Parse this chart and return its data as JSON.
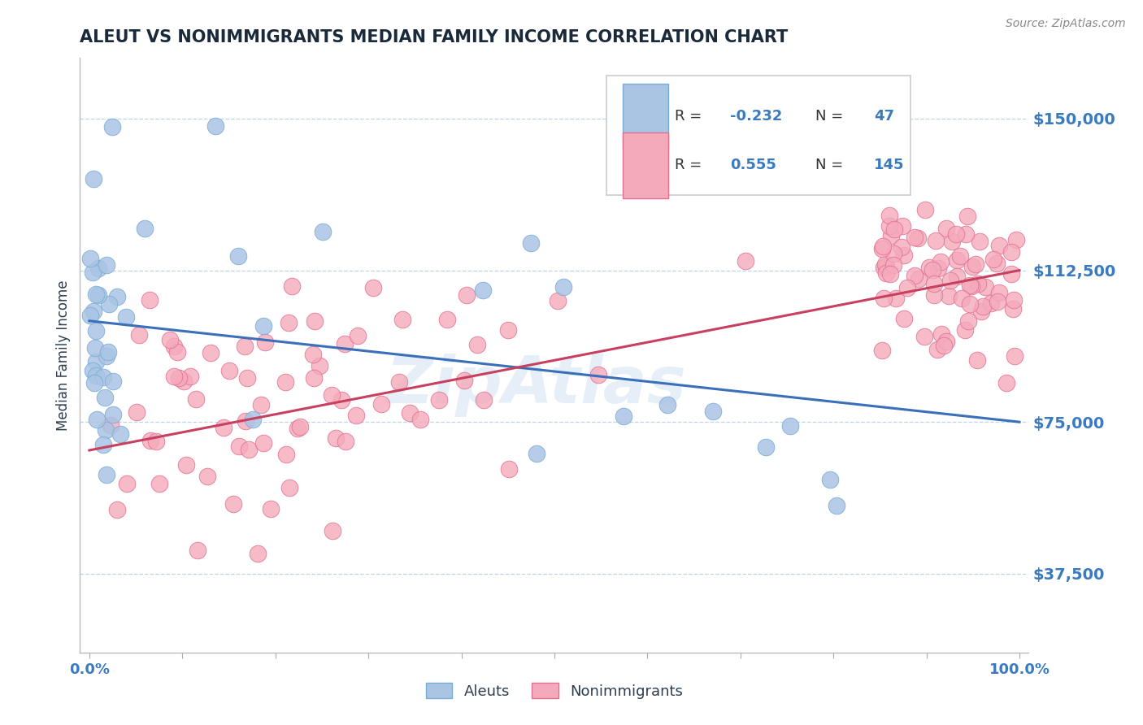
{
  "title": "ALEUT VS NONIMMIGRANTS MEDIAN FAMILY INCOME CORRELATION CHART",
  "source": "Source: ZipAtlas.com",
  "ylabel": "Median Family Income",
  "xlim": [
    -0.01,
    1.01
  ],
  "ylim": [
    18000,
    165000
  ],
  "yticks": [
    37500,
    75000,
    112500,
    150000
  ],
  "ytick_labels": [
    "$37,500",
    "$75,000",
    "$112,500",
    "$150,000"
  ],
  "aleut_color": "#aac4e4",
  "aleut_edge": "#7aadd4",
  "nonimm_color": "#f5aabb",
  "nonimm_edge": "#e07090",
  "trend_blue": "#3a6fba",
  "trend_pink": "#c84060",
  "aleut_R": -0.232,
  "aleut_N": 47,
  "nonimm_R": 0.555,
  "nonimm_N": 145,
  "legend_label_aleut": "Aleuts",
  "legend_label_nonimm": "Nonimmigrants",
  "background_color": "#ffffff",
  "grid_color": "#c0d4e8",
  "title_color": "#1a2a3a",
  "axis_label_color": "#2c3e50",
  "tick_label_color": "#3a7abf",
  "watermark": "ZipAtlas",
  "aleut_trend_x0": 0.0,
  "aleut_trend_y0": 100000,
  "aleut_trend_x1": 1.0,
  "aleut_trend_y1": 75000,
  "nonimm_trend_x0": 0.0,
  "nonimm_trend_y0": 68000,
  "nonimm_trend_x1": 1.0,
  "nonimm_trend_y1": 112500
}
